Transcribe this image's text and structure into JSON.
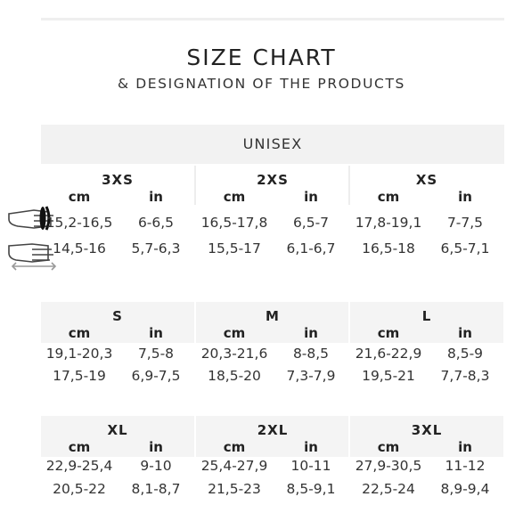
{
  "title": "SIZE CHART",
  "subtitle": "& DESIGNATION OF THE PRODUCTS",
  "band": "UNISEX",
  "icons": {
    "row1": "hand-circumference-icon",
    "row2": "hand-length-icon"
  },
  "unit_labels": {
    "cm": "cm",
    "in": "in"
  },
  "blocks": [
    {
      "sizes": [
        {
          "name": "3XS",
          "cm": [
            "15,2-16,5",
            "14,5-16"
          ],
          "in": [
            "6-6,5",
            "5,7-6,3"
          ]
        },
        {
          "name": "2XS",
          "cm": [
            "16,5-17,8",
            "15,5-17"
          ],
          "in": [
            "6,5-7",
            "6,1-6,7"
          ]
        },
        {
          "name": "XS",
          "cm": [
            "17,8-19,1",
            "16,5-18"
          ],
          "in": [
            "7-7,5",
            "6,5-7,1"
          ]
        }
      ]
    },
    {
      "sizes": [
        {
          "name": "S",
          "cm": [
            "19,1-20,3",
            "17,5-19"
          ],
          "in": [
            "7,5-8",
            "6,9-7,5"
          ]
        },
        {
          "name": "M",
          "cm": [
            "20,3-21,6",
            "18,5-20"
          ],
          "in": [
            "8-8,5",
            "7,3-7,9"
          ]
        },
        {
          "name": "L",
          "cm": [
            "21,6-22,9",
            "19,5-21"
          ],
          "in": [
            "8,5-9",
            "7,7-8,3"
          ]
        }
      ]
    },
    {
      "sizes": [
        {
          "name": "XL",
          "cm": [
            "22,9-25,4",
            "20,5-22"
          ],
          "in": [
            "9-10",
            "8,1-8,7"
          ]
        },
        {
          "name": "2XL",
          "cm": [
            "25,4-27,9",
            "21,5-23"
          ],
          "in": [
            "10-11",
            "8,5-9,1"
          ]
        },
        {
          "name": "3XL",
          "cm": [
            "27,9-30,5",
            "22,5-24"
          ],
          "in": [
            "11-12",
            "8,9-9,4"
          ]
        }
      ]
    }
  ]
}
